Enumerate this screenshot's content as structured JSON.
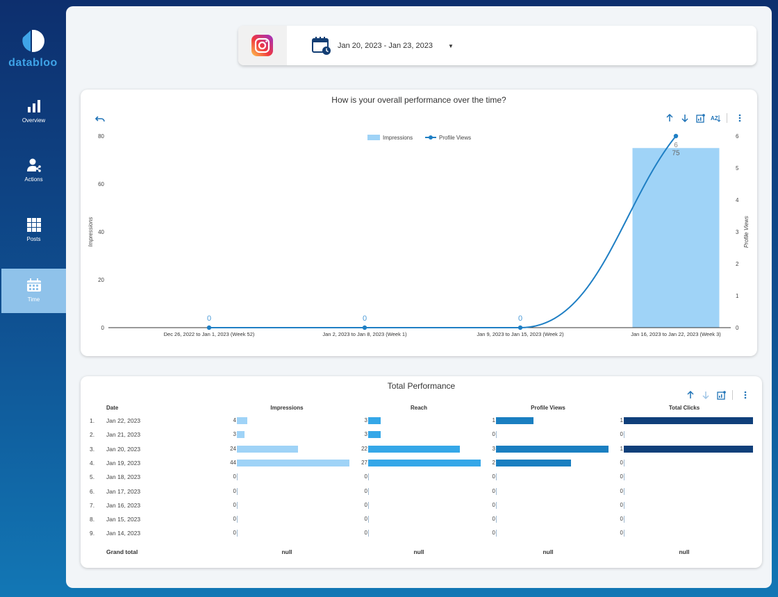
{
  "brand": {
    "name": "databloo"
  },
  "sidebar": {
    "items": [
      {
        "label": "Overview",
        "icon": "bar-chart-icon",
        "active": false
      },
      {
        "label": "Actions",
        "icon": "user-share-icon",
        "active": false
      },
      {
        "label": "Posts",
        "icon": "grid-icon",
        "active": false
      },
      {
        "label": "Time",
        "icon": "calendar-icon",
        "active": true
      }
    ]
  },
  "header": {
    "platform_icon": "instagram-icon",
    "date_range": "Jan 20, 2023 - Jan 23, 2023"
  },
  "chart_card": {
    "title": "How is your overall performance over the time?",
    "toolbar": [
      "sort-ascending-icon",
      "sort-descending-icon",
      "chart-settings-icon",
      "sort-alpha-icon",
      "more-vert-icon"
    ]
  },
  "chart_data": {
    "type": "bar",
    "title": "How is your overall performance over the time?",
    "categories": [
      "Dec 26, 2022 to Jan 1, 2023 (Week 52)",
      "Jan 2, 2023 to Jan 8, 2023 (Week 1)",
      "Jan 9, 2023 to Jan 15, 2023 (Week 2)",
      "Jan 16, 2023 to Jan 22, 2023 (Week 3)"
    ],
    "series": [
      {
        "name": "Impressions",
        "type": "bar",
        "axis": "left",
        "color": "#9fd3f7",
        "values": [
          0,
          0,
          0,
          75
        ]
      },
      {
        "name": "Profile Views",
        "type": "line",
        "axis": "right",
        "color": "#1f7fc4",
        "values": [
          0,
          0,
          0,
          6
        ]
      }
    ],
    "ylabel": "Impressions",
    "y2label": "Profile Views",
    "ylim": [
      0,
      80
    ],
    "y2lim": [
      0,
      6
    ],
    "yticks": [
      0,
      20,
      40,
      60,
      80
    ],
    "y2ticks": [
      0,
      1,
      2,
      3,
      4,
      5,
      6
    ],
    "legend": "top-center",
    "data_labels": [
      "0",
      "0",
      "0",
      "6",
      "75"
    ]
  },
  "table": {
    "title": "Total Performance",
    "toolbar": [
      "sort-ascending-icon",
      "sort-descending-icon",
      "chart-settings-icon",
      "more-vert-icon"
    ],
    "columns": [
      "Date",
      "Impressions",
      "Reach",
      "Profile Views",
      "Total Clicks"
    ],
    "rows": [
      {
        "idx": "1.",
        "date": "Jan 22, 2023",
        "impressions": 4,
        "reach": 3,
        "profile_views": 1,
        "total_clicks": 1
      },
      {
        "idx": "2.",
        "date": "Jan 21, 2023",
        "impressions": 3,
        "reach": 3,
        "profile_views": 0,
        "total_clicks": 0
      },
      {
        "idx": "3.",
        "date": "Jan 20, 2023",
        "impressions": 24,
        "reach": 22,
        "profile_views": 3,
        "total_clicks": 1
      },
      {
        "idx": "4.",
        "date": "Jan 19, 2023",
        "impressions": 44,
        "reach": 27,
        "profile_views": 2,
        "total_clicks": 0
      },
      {
        "idx": "5.",
        "date": "Jan 18, 2023",
        "impressions": 0,
        "reach": 0,
        "profile_views": 0,
        "total_clicks": 0
      },
      {
        "idx": "6.",
        "date": "Jan 17, 2023",
        "impressions": 0,
        "reach": 0,
        "profile_views": 0,
        "total_clicks": 0
      },
      {
        "idx": "7.",
        "date": "Jan 16, 2023",
        "impressions": 0,
        "reach": 0,
        "profile_views": 0,
        "total_clicks": 0
      },
      {
        "idx": "8.",
        "date": "Jan 15, 2023",
        "impressions": 0,
        "reach": 0,
        "profile_views": 0,
        "total_clicks": 0
      },
      {
        "idx": "9.",
        "date": "Jan 14, 2023",
        "impressions": 0,
        "reach": 0,
        "profile_views": 0,
        "total_clicks": 0
      }
    ],
    "grand_total": {
      "label": "Grand total",
      "impressions": "null",
      "reach": "null",
      "profile_views": "null",
      "total_clicks": "null"
    },
    "bar_colors": {
      "impressions": "#9fd3f7",
      "reach": "#35a7e8",
      "profile_views": "#1a7fc1",
      "total_clicks": "#0f3f7a"
    },
    "bar_max": {
      "impressions": 44,
      "reach": 27,
      "profile_views": 3,
      "total_clicks": 1
    }
  },
  "colors": {
    "accent": "#1f73b7",
    "sidebar_active": "#8fc2ea",
    "logo": "#3fa4e8"
  }
}
